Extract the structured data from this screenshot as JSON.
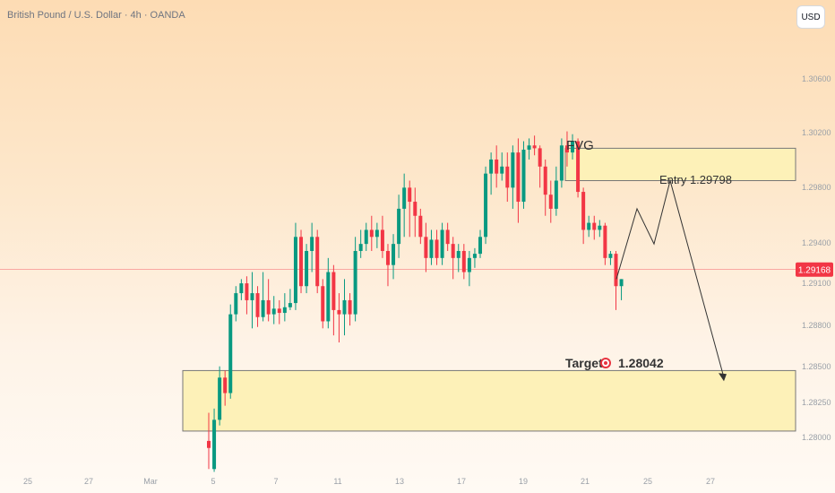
{
  "header": {
    "title": "British Pound / U.S. Dollar · 4h · OANDA",
    "currency_button": "USD"
  },
  "colors": {
    "bull": "#089981",
    "bear": "#f23645",
    "zone_fill": "#fdf1b8",
    "zone_border": "#777777",
    "price_line": "#f23645",
    "axis_text": "#9aa0a8"
  },
  "chart_data": {
    "type": "candlestick",
    "title": "British Pound / U.S. Dollar · 4h · OANDA",
    "ylim": [
      1.2772,
      1.3102
    ],
    "y_ticks": [
      "1.30600",
      "1.30200",
      "1.29800",
      "1.29400",
      "1.29100",
      "1.28800",
      "1.28500",
      "1.28250",
      "1.28000"
    ],
    "x_ticks": [
      "25",
      "27",
      "Mar",
      "5",
      "7",
      "11",
      "13",
      "17",
      "19",
      "21",
      "25",
      "27"
    ],
    "current_price": "1.29168",
    "candles": [
      [
        1.2795,
        1.2815,
        1.279,
        1.2775
      ],
      [
        1.2775,
        1.2818,
        1.281,
        1.2773
      ],
      [
        1.281,
        1.2848,
        1.284,
        1.2806
      ],
      [
        1.284,
        1.2845,
        1.2829,
        1.282
      ],
      [
        1.2829,
        1.2892,
        1.2885,
        1.2825
      ],
      [
        1.2885,
        1.2905,
        1.29,
        1.288
      ],
      [
        1.29,
        1.291,
        1.2907,
        1.2895
      ],
      [
        1.2907,
        1.2912,
        1.2895,
        1.2885
      ],
      [
        1.2895,
        1.2915,
        1.29,
        1.2875
      ],
      [
        1.29,
        1.2905,
        1.2883,
        1.2876
      ],
      [
        1.2883,
        1.2915,
        1.2895,
        1.288
      ],
      [
        1.2895,
        1.291,
        1.2885,
        1.288
      ],
      [
        1.2885,
        1.2898,
        1.2889,
        1.2878
      ],
      [
        1.2889,
        1.2895,
        1.2886,
        1.2878
      ],
      [
        1.2886,
        1.29,
        1.289,
        1.288
      ],
      [
        1.289,
        1.2903,
        1.2893,
        1.2888
      ],
      [
        1.2893,
        1.295,
        1.294,
        1.2888
      ],
      [
        1.294,
        1.2945,
        1.2905,
        1.29
      ],
      [
        1.2905,
        1.2935,
        1.293,
        1.29
      ],
      [
        1.293,
        1.295,
        1.294,
        1.2915
      ],
      [
        1.294,
        1.2945,
        1.2905,
        1.29
      ],
      [
        1.2905,
        1.291,
        1.288,
        1.2875
      ],
      [
        1.288,
        1.2925,
        1.2915,
        1.2875
      ],
      [
        1.2915,
        1.292,
        1.2888,
        1.287
      ],
      [
        1.2888,
        1.29,
        1.2885,
        1.2865
      ],
      [
        1.2885,
        1.291,
        1.2895,
        1.287
      ],
      [
        1.2895,
        1.29,
        1.2885,
        1.2877
      ],
      [
        1.2885,
        1.294,
        1.293,
        1.288
      ],
      [
        1.293,
        1.2945,
        1.2935,
        1.2925
      ],
      [
        1.2935,
        1.295,
        1.2945,
        1.293
      ],
      [
        1.2945,
        1.2955,
        1.294,
        1.293
      ],
      [
        1.294,
        1.295,
        1.2945,
        1.2932
      ],
      [
        1.2945,
        1.2955,
        1.293,
        1.2925
      ],
      [
        1.293,
        1.2935,
        1.292,
        1.2905
      ],
      [
        1.292,
        1.2942,
        1.2935,
        1.291
      ],
      [
        1.2935,
        1.297,
        1.296,
        1.2925
      ],
      [
        1.296,
        1.2985,
        1.2975,
        1.294
      ],
      [
        1.2975,
        1.298,
        1.2965,
        1.294
      ],
      [
        1.2965,
        1.2975,
        1.2955,
        1.294
      ],
      [
        1.2955,
        1.296,
        1.294,
        1.2935
      ],
      [
        1.294,
        1.295,
        1.2925,
        1.2915
      ],
      [
        1.2925,
        1.2945,
        1.2938,
        1.292
      ],
      [
        1.2938,
        1.2945,
        1.2925,
        1.292
      ],
      [
        1.2925,
        1.295,
        1.2945,
        1.292
      ],
      [
        1.2945,
        1.295,
        1.2935,
        1.293
      ],
      [
        1.2935,
        1.294,
        1.2925,
        1.291
      ],
      [
        1.2925,
        1.2935,
        1.293,
        1.2915
      ],
      [
        1.293,
        1.2935,
        1.2915,
        1.291
      ],
      [
        1.2915,
        1.293,
        1.2925,
        1.2905
      ],
      [
        1.2925,
        1.2932,
        1.2928,
        1.2918
      ],
      [
        1.2928,
        1.2945,
        1.294,
        1.2925
      ],
      [
        1.294,
        1.299,
        1.2985,
        1.2935
      ],
      [
        1.2985,
        1.3,
        1.2995,
        1.297
      ],
      [
        1.2995,
        1.3005,
        1.2985,
        1.2975
      ],
      [
        1.2985,
        1.3,
        1.299,
        1.298
      ],
      [
        1.299,
        1.3,
        1.2975,
        1.2965
      ],
      [
        1.2975,
        1.3005,
        1.3,
        1.296
      ],
      [
        1.3,
        1.301,
        1.2965,
        1.295
      ],
      [
        1.2965,
        1.3008,
        1.3002,
        1.296
      ],
      [
        1.3002,
        1.301,
        1.3005,
        1.2995
      ],
      [
        1.3005,
        1.3012,
        1.3003,
        1.2998
      ],
      [
        1.3003,
        1.3005,
        1.299,
        1.2975
      ],
      [
        1.299,
        1.2995,
        1.297,
        1.2955
      ],
      [
        1.297,
        1.298,
        1.296,
        1.295
      ],
      [
        1.296,
        1.299,
        1.298,
        1.2955
      ],
      [
        1.298,
        1.301,
        1.3005,
        1.2975
      ],
      [
        1.3005,
        1.3015,
        1.3,
        1.299
      ],
      [
        1.3,
        1.3013,
        1.3008,
        1.2995
      ],
      [
        1.3008,
        1.301,
        1.2972,
        1.2968
      ],
      [
        1.2972,
        1.2975,
        1.2945,
        1.2935
      ],
      [
        1.2945,
        1.2955,
        1.295,
        1.294
      ],
      [
        1.295,
        1.2955,
        1.2945,
        1.2938
      ],
      [
        1.2945,
        1.2952,
        1.2948,
        1.294
      ],
      [
        1.2948,
        1.295,
        1.2925,
        1.292
      ],
      [
        1.2925,
        1.293,
        1.2928,
        1.292
      ],
      [
        1.2928,
        1.293,
        1.2905,
        1.2888
      ],
      [
        1.2905,
        1.291,
        1.291,
        1.2895
      ]
    ],
    "annotations": {
      "fvg_label": "FVG",
      "fvg_zone": [
        1.298,
        1.3003
      ],
      "entry_label": "Entry 1.29798",
      "entry_price": 1.29798,
      "target_word": "Target",
      "target_value": "1.28042",
      "target_zone": [
        1.2802,
        1.2845
      ],
      "projection": [
        [
          1.291,
          0
        ],
        [
          1.296,
          1
        ],
        [
          1.2935,
          2
        ],
        [
          1.298,
          3
        ],
        [
          1.284,
          4
        ]
      ]
    }
  }
}
